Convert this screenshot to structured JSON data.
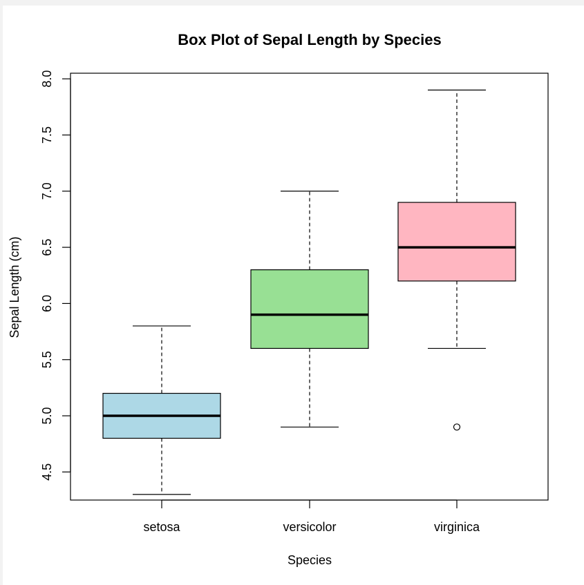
{
  "chart_data": {
    "type": "box",
    "title": "Box Plot of Sepal Length by Species",
    "xlabel": "Species",
    "ylabel": "Sepal Length (cm)",
    "ylim": [
      4.25,
      8.05
    ],
    "y_ticks": [
      "4.5",
      "5.0",
      "5.5",
      "6.0",
      "6.5",
      "7.0",
      "7.5",
      "8.0"
    ],
    "categories": [
      "setosa",
      "versicolor",
      "virginica"
    ],
    "boxes": [
      {
        "category": "setosa",
        "min": 4.3,
        "q1": 4.8,
        "median": 5.0,
        "q3": 5.2,
        "max": 5.8,
        "outliers": [],
        "color": "#add8e6"
      },
      {
        "category": "versicolor",
        "min": 4.9,
        "q1": 5.6,
        "median": 5.9,
        "q3": 6.3,
        "max": 7.0,
        "outliers": [],
        "color": "#98e094"
      },
      {
        "category": "virginica",
        "min": 5.6,
        "q1": 6.2,
        "median": 6.5,
        "q3": 6.9,
        "max": 7.9,
        "outliers": [
          4.9
        ],
        "color": "#ffb6c1"
      }
    ]
  }
}
